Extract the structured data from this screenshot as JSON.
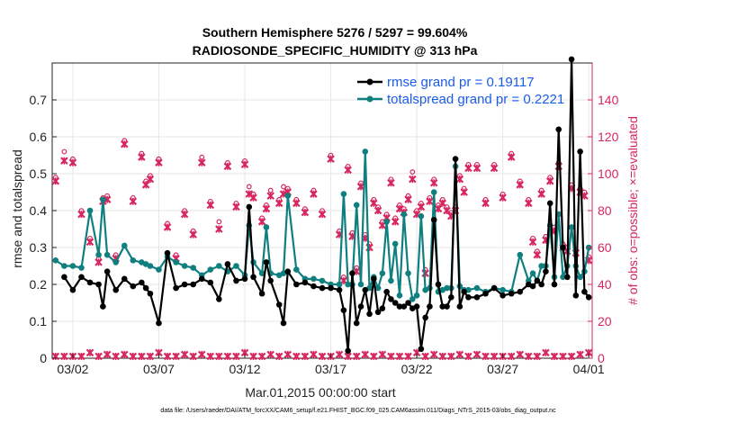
{
  "chart_data": {
    "type": "line",
    "title": [
      "Southern Hemisphere 5276 / 5297 = 99.604%",
      "RADIOSONDE_SPECIFIC_HUMIDITY @ 313 hPa"
    ],
    "xlabel": "Mar.01,2015 00:00:00 start",
    "ylabel": "rmse and totalspread",
    "ylabel_right": "# of obs: o=possible; ×=evaluated",
    "footnote": "data file: /Users/raeder/DAI/ATM_forcXX/CAM6_setup/f.e21.FHIST_BGC.f09_025.CAM6assim.011/Diags_NTrS_2015-03/obs_diag_output.nc",
    "xlim": [
      0.8,
      32.2
    ],
    "ylim": [
      0,
      0.8
    ],
    "ylim_right": [
      0,
      160
    ],
    "x_ticks": [
      2,
      7,
      12,
      17,
      22,
      27,
      32
    ],
    "x_tick_labels": [
      "03/02",
      "03/07",
      "03/12",
      "03/17",
      "03/22",
      "03/27",
      "04/01"
    ],
    "y_ticks": [
      0,
      0.1,
      0.2,
      0.3,
      0.4,
      0.5,
      0.6,
      0.7
    ],
    "y_tick_labels": [
      "0",
      "0.1",
      "0.2",
      "0.3",
      "0.4",
      "0.5",
      "0.6",
      "0.7"
    ],
    "y_ticks_right": [
      0,
      20,
      40,
      60,
      80,
      100,
      120,
      140
    ],
    "grid": true,
    "legend_position": "top-right",
    "colors": {
      "rmse": "#000000",
      "spread": "#0f7f7f",
      "obs": "#d6275f",
      "right_axis": "#d6275f",
      "legend_text": "#1b5ce8"
    },
    "series": [
      {
        "name": "rmse grand pr = 0.19117",
        "x": [
          1,
          1.5,
          2,
          2.5,
          3,
          3.5,
          3.75,
          4,
          4.5,
          5,
          5.5,
          6,
          6.25,
          6.5,
          7,
          7.5,
          8,
          8.5,
          9,
          9.5,
          10,
          10.5,
          11,
          11.5,
          12,
          12.25,
          12.5,
          13,
          13.25,
          13.5,
          14,
          14.25,
          14.5,
          15,
          15.5,
          16,
          16.5,
          17,
          17.5,
          17.75,
          18,
          18.25,
          18.5,
          18.75,
          19,
          19.25,
          19.5,
          19.75,
          20,
          20.25,
          20.5,
          20.75,
          21,
          21.25,
          21.5,
          21.75,
          22,
          22.25,
          22.5,
          22.75,
          23,
          23.25,
          23.5,
          23.75,
          24,
          24.25,
          24.5,
          24.75,
          25,
          25.5,
          26,
          26.5,
          27,
          27.5,
          28,
          28.5,
          28.75,
          29,
          29.25,
          29.5,
          29.75,
          30,
          30.25,
          30.5,
          30.75,
          31,
          31.25,
          31.5,
          31.75,
          32
        ],
        "values": [
          null,
          0.22,
          0.185,
          0.22,
          0.205,
          0.2,
          0.14,
          0.235,
          0.185,
          0.215,
          0.195,
          0.205,
          0.19,
          0.175,
          0.095,
          0.285,
          0.19,
          0.2,
          0.2,
          0.215,
          0.205,
          0.16,
          0.255,
          0.21,
          0.215,
          0.41,
          0.22,
          0.175,
          0.26,
          0.21,
          0.145,
          0.095,
          0.235,
          0.2,
          0.205,
          0.195,
          0.19,
          0.19,
          0.185,
          0.13,
          0.02,
          0.23,
          0.095,
          0.14,
          0.185,
          0.12,
          0.215,
          0.125,
          0.135,
          0.18,
          0.16,
          0.15,
          0.14,
          0.14,
          0.15,
          0.135,
          0.14,
          0.025,
          0.11,
          0.14,
          0.375,
          0.2,
          0.14,
          0.14,
          0.165,
          0.54,
          0.14,
          0.18,
          0.165,
          0.165,
          0.175,
          0.19,
          0.17,
          0.175,
          0.18,
          0.2,
          0.195,
          0.21,
          0.2,
          0.235,
          0.42,
          0.2,
          0.62,
          0.3,
          0.22,
          0.81,
          0.17,
          0.56,
          0.18,
          0.165
        ],
        "color": "#000000"
      },
      {
        "name": "totalspread grand pr = 0.2221",
        "x": [
          1,
          1.5,
          2,
          2.5,
          3,
          3.5,
          3.75,
          4,
          4.5,
          5,
          5.5,
          6,
          6.25,
          6.5,
          7,
          7.5,
          8,
          8.5,
          9,
          9.5,
          10,
          10.5,
          11,
          11.5,
          12,
          12.25,
          12.5,
          13,
          13.25,
          13.5,
          14,
          14.25,
          14.5,
          15,
          15.5,
          16,
          16.5,
          17,
          17.5,
          17.75,
          18,
          18.25,
          18.5,
          18.75,
          19,
          19.25,
          19.5,
          19.75,
          20,
          20.25,
          20.5,
          20.75,
          21,
          21.25,
          21.5,
          21.75,
          22,
          22.25,
          22.5,
          22.75,
          23,
          23.25,
          23.5,
          23.75,
          24,
          24.25,
          24.5,
          24.75,
          25,
          25.5,
          26,
          26.5,
          27,
          27.5,
          28,
          28.5,
          28.75,
          29,
          29.25,
          29.5,
          29.75,
          30,
          30.25,
          30.5,
          30.75,
          31,
          31.25,
          31.5,
          31.75,
          32
        ],
        "values": [
          0.265,
          0.25,
          0.25,
          0.245,
          0.4,
          0.28,
          0.43,
          0.28,
          0.26,
          0.305,
          0.265,
          0.26,
          0.255,
          0.25,
          0.24,
          0.275,
          0.26,
          0.25,
          0.245,
          0.225,
          0.24,
          0.25,
          0.235,
          0.25,
          0.225,
          0.36,
          0.26,
          0.23,
          0.355,
          0.23,
          0.225,
          0.23,
          0.44,
          0.24,
          0.215,
          0.215,
          0.21,
          0.2,
          0.2,
          0.445,
          0.2,
          0.2,
          0.415,
          0.2,
          0.56,
          0.19,
          0.22,
          0.19,
          0.23,
          0.37,
          0.21,
          0.31,
          0.17,
          0.39,
          0.23,
          0.16,
          0.17,
          0.385,
          0.185,
          0.19,
          0.45,
          0.18,
          0.185,
          0.19,
          0.19,
          0.52,
          0.195,
          0.185,
          0.185,
          0.19,
          0.18,
          0.19,
          0.185,
          0.18,
          0.28,
          0.21,
          0.23,
          0.21,
          0.25,
          0.25,
          0.36,
          0.22,
          0.39,
          0.22,
          0.25,
          0.355,
          0.25,
          0.22,
          0.235,
          0.3
        ],
        "color": "#0f7f7f"
      }
    ],
    "obs_possible": {
      "x": [
        1,
        1.5,
        2,
        2.5,
        3,
        3.5,
        3.75,
        4,
        4.5,
        5,
        5.5,
        6,
        6.25,
        6.5,
        7,
        7.5,
        8,
        8.5,
        9,
        9.5,
        10,
        10.5,
        11,
        11.5,
        12,
        12.25,
        12.5,
        13,
        13.25,
        13.5,
        14,
        14.25,
        14.5,
        15,
        15.5,
        16,
        16.5,
        17,
        17.5,
        17.75,
        18,
        18.25,
        18.5,
        18.75,
        19,
        19.25,
        19.5,
        19.75,
        20,
        20.25,
        20.5,
        20.75,
        21,
        21.25,
        21.5,
        21.75,
        22,
        22.25,
        22.5,
        22.75,
        23,
        23.25,
        23.5,
        23.75,
        24,
        24.25,
        24.5,
        24.75,
        25,
        25.5,
        26,
        26.5,
        27,
        27.5,
        28,
        28.5,
        28.75,
        29,
        29.25,
        29.5,
        29.75,
        30,
        30.25,
        30.5,
        30.75,
        31,
        31.25,
        31.5,
        31.75,
        32
      ],
      "values": [
        96,
        110,
        106,
        78,
        63,
        52,
        85,
        86,
        54,
        116,
        85,
        109,
        94,
        97,
        106,
        71,
        54,
        78,
        67,
        107,
        83,
        72,
        104,
        82,
        105,
        91,
        87,
        74,
        81,
        89,
        84,
        91,
        90,
        84,
        79,
        89,
        78,
        108,
        67,
        42,
        102,
        66,
        47,
        93,
        65,
        60,
        84,
        80,
        72,
        76,
        95,
        74,
        81,
        79,
        86,
        99,
        78,
        82,
        46,
        85,
        95,
        81,
        84,
        80,
        77,
        80,
        97,
        90,
        103,
        103,
        84,
        103,
        87,
        109,
        94,
        84,
        63,
        56,
        89,
        64,
        96,
        69,
        104,
        60,
        58,
        92,
        57,
        90,
        88,
        53
      ]
    },
    "obs_evaluated": {
      "x": [
        1,
        1.5,
        2,
        2.5,
        3,
        3.5,
        3.75,
        4,
        4.5,
        5,
        5.5,
        6,
        6.25,
        6.5,
        7,
        7.5,
        8,
        8.5,
        9,
        9.5,
        10,
        10.5,
        11,
        11.5,
        12,
        12.25,
        12.5,
        13,
        13.25,
        13.5,
        14,
        14.25,
        14.5,
        15,
        15.5,
        16,
        16.5,
        17,
        17.5,
        17.75,
        18,
        18.25,
        18.5,
        18.75,
        19,
        19.25,
        19.5,
        19.75,
        20,
        20.25,
        20.5,
        20.75,
        21,
        21.25,
        21.5,
        21.75,
        22,
        22.25,
        22.5,
        22.75,
        23,
        23.25,
        23.5,
        23.75,
        24,
        24.25,
        24.5,
        24.75,
        25,
        25.5,
        26,
        26.5,
        27,
        27.5,
        28,
        28.5,
        28.75,
        29,
        29.25,
        29.5,
        29.75,
        30,
        30.25,
        30.5,
        30.75,
        31,
        31.25,
        31.5,
        31.75,
        32
      ],
      "values": [
        96,
        107,
        106,
        78,
        63,
        52,
        85,
        86,
        54,
        116,
        85,
        109,
        94,
        97,
        106,
        71,
        54,
        78,
        67,
        106,
        83,
        70,
        104,
        82,
        105,
        89,
        87,
        74,
        81,
        88,
        84,
        89,
        90,
        84,
        79,
        89,
        78,
        108,
        67,
        42,
        102,
        66,
        47,
        93,
        65,
        60,
        84,
        80,
        72,
        76,
        95,
        74,
        81,
        79,
        86,
        97,
        78,
        82,
        46,
        85,
        95,
        81,
        84,
        80,
        77,
        80,
        97,
        90,
        103,
        103,
        84,
        103,
        87,
        109,
        94,
        84,
        63,
        56,
        89,
        64,
        96,
        69,
        104,
        60,
        58,
        92,
        57,
        90,
        88,
        53
      ]
    },
    "obs_bottom": {
      "x": [
        1,
        1.5,
        2,
        2.5,
        3,
        3.5,
        4,
        4.5,
        5,
        5.5,
        6,
        6.5,
        7,
        7.5,
        8,
        8.5,
        9,
        9.5,
        10,
        10.5,
        11,
        11.5,
        12,
        12.5,
        13,
        13.5,
        14,
        14.5,
        15,
        15.5,
        16,
        16.5,
        17,
        17.5,
        18,
        18.5,
        19,
        19.5,
        20,
        20.5,
        21,
        21.5,
        22,
        22.5,
        23,
        23.5,
        24,
        24.5,
        25,
        25.5,
        26,
        26.5,
        27,
        27.5,
        28,
        28.5,
        29,
        29.5,
        30,
        30.5,
        31,
        31.5,
        32
      ],
      "values": [
        1,
        1,
        1,
        1,
        3,
        1,
        2,
        1,
        2,
        1,
        1,
        1,
        3,
        1,
        1,
        2,
        1,
        2,
        1,
        1,
        1,
        1,
        3,
        1,
        1,
        2,
        1,
        2,
        1,
        1,
        2,
        1,
        1,
        2,
        1,
        1,
        2,
        1,
        2,
        1,
        1,
        1,
        3,
        1,
        2,
        1,
        1,
        2,
        1,
        2,
        1,
        1,
        1,
        1,
        2,
        1,
        1,
        3,
        1,
        1,
        1,
        2,
        3
      ]
    }
  }
}
